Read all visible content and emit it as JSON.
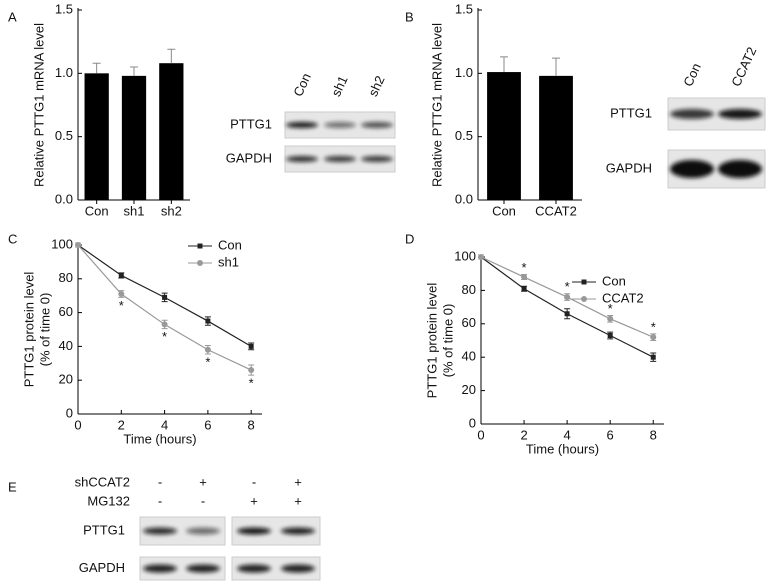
{
  "panels": [
    "A",
    "B",
    "C",
    "D",
    "E"
  ],
  "chart_data": [
    {
      "type": "bar",
      "categories": [
        "Con",
        "sh1",
        "sh2"
      ],
      "values": [
        1.0,
        0.98,
        1.08
      ],
      "errors": [
        0.08,
        0.07,
        0.11
      ],
      "color": "#000000",
      "ylim": [
        0,
        1.5
      ],
      "yticks": [
        {
          "value": 0,
          "label": "0.0"
        },
        {
          "value": 0.5,
          "label": "0.5"
        },
        {
          "value": 1,
          "label": "1.0"
        },
        {
          "value": 1.5,
          "label": "1.5"
        }
      ],
      "ylabel": [
        "Relative PTTG1 mRNA level"
      ]
    },
    {
      "type": "bar",
      "categories": [
        "Con",
        "CCAT2"
      ],
      "values": [
        1.01,
        0.98
      ],
      "errors": [
        0.12,
        0.14
      ],
      "color": "#000000",
      "ylim": [
        0,
        1.5
      ],
      "yticks": [
        {
          "value": 0,
          "label": "0.0"
        },
        {
          "value": 0.5,
          "label": "0.5"
        },
        {
          "value": 1,
          "label": "1.0"
        },
        {
          "value": 1.5,
          "label": "1.5"
        }
      ],
      "ylabel": [
        "Relative PTTG1 mRNA level"
      ]
    },
    {
      "type": "line",
      "x": [
        0,
        2,
        4,
        6,
        8
      ],
      "xlim": [
        0,
        8.5
      ],
      "xticks": [
        0,
        2,
        4,
        6,
        8
      ],
      "ylim": [
        0,
        100
      ],
      "yticks": [
        0,
        20,
        40,
        60,
        80,
        100
      ],
      "xlabel": "Time (hours)",
      "ylabel": [
        "PTTG1 protein level",
        "(% of time 0)"
      ],
      "legend": "upper right",
      "series": [
        {
          "name": "Con",
          "color": "#222222",
          "marker": "square",
          "values": [
            100,
            82,
            69,
            55,
            40
          ],
          "errors": [
            0,
            1.5,
            2.5,
            2.5,
            2
          ]
        },
        {
          "name": "sh1",
          "color": "#999999",
          "marker": "circle",
          "values": [
            100,
            71,
            53,
            38,
            26
          ],
          "errors": [
            0,
            2,
            2.5,
            2.5,
            3
          ]
        }
      ],
      "annotations": [
        {
          "text": "*",
          "x": 2
        },
        {
          "text": "*",
          "x": 4
        },
        {
          "text": "*",
          "x": 6
        },
        {
          "text": "*",
          "x": 8
        }
      ],
      "annotation_series": 1,
      "annotation_side": "below"
    },
    {
      "type": "line",
      "x": [
        0,
        2,
        4,
        6,
        8
      ],
      "xlim": [
        0,
        8.5
      ],
      "xticks": [
        0,
        2,
        4,
        6,
        8
      ],
      "ylim": [
        0,
        100
      ],
      "yticks": [
        0,
        20,
        40,
        60,
        80,
        100
      ],
      "xlabel": "Time (hours)",
      "ylabel": [
        "PTTG1 protein level",
        "(% of time 0)"
      ],
      "legend": "upper right",
      "series": [
        {
          "name": "Con",
          "color": "#222222",
          "marker": "square",
          "values": [
            100,
            81,
            66,
            53,
            40
          ],
          "errors": [
            0,
            1.5,
            3,
            2,
            2.5
          ]
        },
        {
          "name": "CCAT2",
          "color": "#999999",
          "marker": "circle",
          "values": [
            100,
            88,
            76,
            63,
            52
          ],
          "errors": [
            0,
            1.5,
            2,
            2,
            2
          ]
        }
      ],
      "annotations": [
        {
          "text": "*",
          "x": 2
        },
        {
          "text": "*",
          "x": 4
        },
        {
          "text": "*",
          "x": 6
        },
        {
          "text": "*",
          "x": 8
        }
      ],
      "annotation_series": 1,
      "annotation_side": "above"
    }
  ],
  "blots": [
    {
      "lanes": [
        "Con",
        "sh1",
        "sh2"
      ],
      "rows": [
        "PTTG1",
        "GAPDH"
      ]
    },
    {
      "lanes": [
        "Con",
        "CCAT2"
      ],
      "rows": [
        "PTTG1",
        "GAPDH"
      ]
    }
  ],
  "panel_e": {
    "conditions": [
      {
        "name": "shCCAT2",
        "signs": [
          "-",
          "+",
          "-",
          "+"
        ]
      },
      {
        "name": "MG132",
        "signs": [
          "-",
          "-",
          "+",
          "+"
        ]
      }
    ],
    "rows": [
      "PTTG1",
      "GAPDH"
    ]
  }
}
